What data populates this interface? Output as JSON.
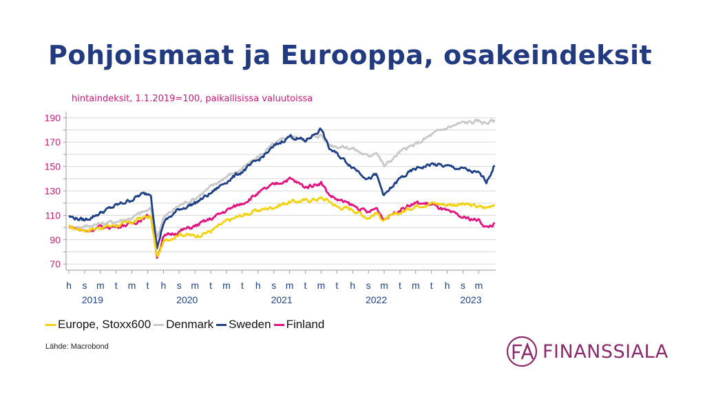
{
  "slide": {
    "title": "Pohjoismaat ja Eurooppa, osakeindeksit",
    "source": "Lähde: Macrobond"
  },
  "brand": {
    "logo_text": "FINANSSIALA",
    "logo_color": "#8a2a6b"
  },
  "chart_data": {
    "type": "line",
    "subtitle": "hintaindeksit, 1.1.2019=100, paikallisissa valuutoissa",
    "ylim": [
      65,
      195
    ],
    "yticks": [
      70,
      90,
      110,
      130,
      150,
      170,
      190
    ],
    "month_labels": [
      "h",
      "s",
      "m",
      "t",
      "m",
      "t",
      "h",
      "s",
      "m",
      "t",
      "m",
      "t",
      "h",
      "s",
      "m",
      "t",
      "m",
      "t",
      "h",
      "s",
      "m",
      "t",
      "m",
      "t",
      "h",
      "s",
      "m"
    ],
    "year_labels": [
      {
        "label": "2019",
        "month_index": 1.5
      },
      {
        "label": "2020",
        "month_index": 7.5
      },
      {
        "label": "2021",
        "month_index": 13.5
      },
      {
        "label": "2022",
        "month_index": 19.5
      },
      {
        "label": "2023",
        "month_index": 25.5
      }
    ],
    "x_range_months": [
      0,
      27
    ],
    "x_key": [
      0,
      1,
      2,
      3,
      4,
      4.6,
      5.2,
      5.6,
      6,
      7,
      8,
      9,
      10,
      11,
      12,
      13,
      14,
      15,
      16,
      16.5,
      17,
      18,
      19,
      19.5,
      20,
      21,
      22,
      23,
      24,
      25,
      26,
      26.5,
      27
    ],
    "series": [
      {
        "name": "Europe, Stoxx600",
        "color": "#f2d20c",
        "values": [
          100,
          98,
          100,
          102,
          104,
          108,
          109,
          75,
          88,
          95,
          93,
          97,
          105,
          110,
          114,
          117,
          121,
          122,
          124,
          122,
          117,
          115,
          108,
          112,
          106,
          112,
          118,
          120,
          119,
          119,
          117,
          116,
          120
        ]
      },
      {
        "name": "Denmark",
        "color": "#c8c8c8",
        "values": [
          100,
          101,
          103,
          105,
          108,
          112,
          115,
          92,
          108,
          118,
          124,
          133,
          142,
          148,
          158,
          168,
          175,
          172,
          176,
          168,
          167,
          165,
          158,
          163,
          150,
          162,
          168,
          176,
          182,
          186,
          187,
          186,
          188
        ]
      },
      {
        "name": "Sweden",
        "color": "#1c3f86",
        "values": [
          109,
          106,
          112,
          118,
          123,
          127,
          128,
          83,
          104,
          115,
          120,
          128,
          138,
          146,
          155,
          166,
          175,
          171,
          181,
          165,
          160,
          150,
          140,
          143,
          126,
          140,
          148,
          152,
          150,
          148,
          144,
          138,
          151
        ]
      },
      {
        "name": "Finland",
        "color": "#e0137f",
        "values": [
          101,
          97,
          100,
          101,
          103,
          107,
          110,
          76,
          92,
          97,
          101,
          107,
          114,
          120,
          128,
          135,
          140,
          133,
          137,
          127,
          123,
          118,
          112,
          116,
          107,
          115,
          120,
          119,
          113,
          108,
          106,
          100,
          103
        ]
      }
    ]
  }
}
